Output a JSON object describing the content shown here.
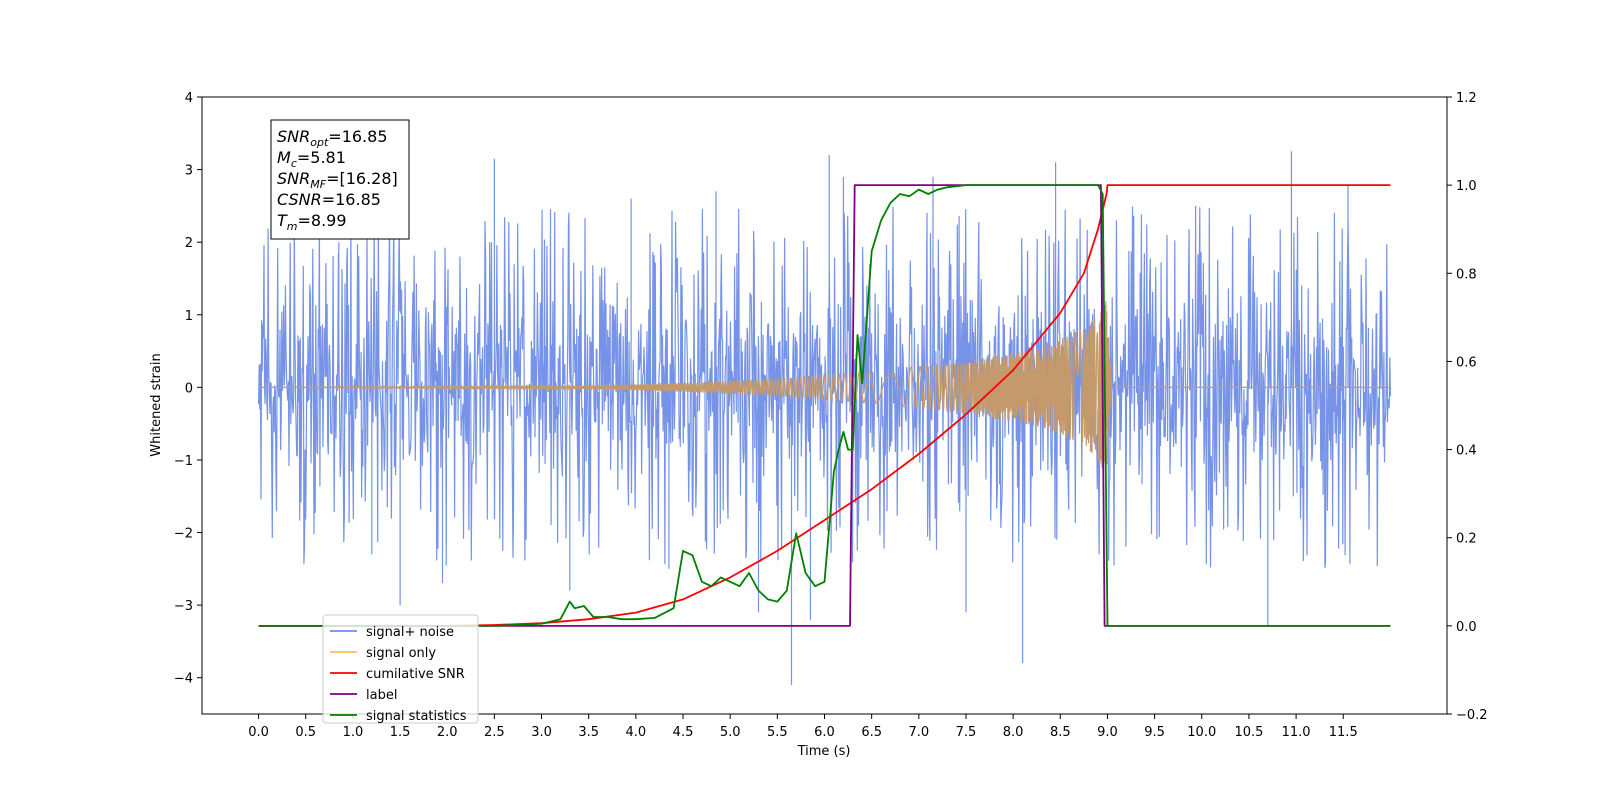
{
  "chart_data": {
    "type": "line",
    "xlabel": "Time (s)",
    "ylabel": "Whitened strain",
    "xlim": [
      -0.6,
      12.6
    ],
    "ylim": [
      -4.5,
      4.0
    ],
    "y2lim": [
      -0.2,
      1.2
    ],
    "x_ticks": [
      0.0,
      0.5,
      1.0,
      1.5,
      2.0,
      2.5,
      3.0,
      3.5,
      4.0,
      4.5,
      5.0,
      5.5,
      6.0,
      6.5,
      7.0,
      7.5,
      8.0,
      8.5,
      9.0,
      9.5,
      10.0,
      10.5,
      11.0,
      11.5
    ],
    "x_tick_labels": [
      "0.0",
      "0.5",
      "1.0",
      "1.5",
      "2.0",
      "2.5",
      "3.0",
      "3.5",
      "4.0",
      "4.5",
      "5.0",
      "5.5",
      "6.0",
      "6.5",
      "7.0",
      "7.5",
      "8.0",
      "8.5",
      "9.0",
      "9.5",
      "10.0",
      "10.5",
      "11.0",
      "11.5"
    ],
    "y_ticks": [
      -4,
      -3,
      -2,
      -1,
      0,
      1,
      2,
      3,
      4
    ],
    "y_tick_labels": [
      "−4",
      "−3",
      "−2",
      "−1",
      "0",
      "1",
      "2",
      "3",
      "4"
    ],
    "y2_ticks": [
      -0.2,
      0.0,
      0.2,
      0.4,
      0.6,
      0.8,
      1.0,
      1.2
    ],
    "y2_tick_labels": [
      "−0.2",
      "0.0",
      "0.2",
      "0.4",
      "0.6",
      "0.8",
      "1.0",
      "1.2"
    ],
    "legend_position": "lower-left",
    "grid": false,
    "annotation": {
      "lines": [
        {
          "base": "SNR",
          "sub": "opt",
          "rest": "=16.85"
        },
        {
          "base": "M",
          "sub": "c",
          "rest": "=5.81"
        },
        {
          "base": "SNR",
          "sub": "MF",
          "rest": "=[16.28]"
        },
        {
          "base": "CSNR",
          "sub": "",
          "rest": "=16.85"
        },
        {
          "base": "T",
          "sub": "m",
          "rest": "=8.99"
        }
      ]
    },
    "series": [
      {
        "name": "signal+ noise",
        "axis": "left",
        "color": "#6f8de6",
        "kind": "noise",
        "x_start": 0.0,
        "x_end": 12.0,
        "band_envelope": 1.9,
        "peaks": [
          [
            0.85,
            2.0
          ],
          [
            1.2,
            -2.3
          ],
          [
            1.95,
            -2.7
          ],
          [
            2.5,
            3.15
          ],
          [
            3.3,
            -2.8
          ],
          [
            3.95,
            2.6
          ],
          [
            4.35,
            -2.5
          ],
          [
            4.85,
            2.7
          ],
          [
            5.3,
            -3.1
          ],
          [
            5.85,
            -3.2
          ],
          [
            6.05,
            3.2
          ],
          [
            6.2,
            2.9
          ],
          [
            7.15,
            2.9
          ],
          [
            7.5,
            -3.1
          ],
          [
            8.1,
            -3.8
          ],
          [
            8.45,
            3.1
          ],
          [
            8.95,
            2.55
          ],
          [
            10.7,
            -3.3
          ],
          [
            10.95,
            3.25
          ],
          [
            11.55,
            2.8
          ],
          [
            5.65,
            -4.1
          ],
          [
            1.5,
            -3.0
          ]
        ]
      },
      {
        "name": "signal only",
        "axis": "left",
        "color": "#c49a6c",
        "kind": "chirp",
        "t_merge": 8.99,
        "envelope": [
          [
            0.0,
            0.0
          ],
          [
            3.5,
            0.02
          ],
          [
            4.5,
            0.06
          ],
          [
            5.5,
            0.12
          ],
          [
            6.5,
            0.22
          ],
          [
            7.5,
            0.36
          ],
          [
            8.3,
            0.55
          ],
          [
            8.8,
            0.85
          ],
          [
            8.99,
            1.2
          ],
          [
            9.05,
            0.0
          ],
          [
            12.0,
            0.0
          ]
        ]
      },
      {
        "name": "cumilative SNR",
        "axis": "right",
        "color": "#ff0000",
        "x": [
          0.0,
          2.0,
          2.5,
          3.0,
          3.5,
          4.0,
          4.5,
          5.0,
          5.5,
          6.0,
          6.5,
          7.0,
          7.5,
          8.0,
          8.5,
          8.75,
          8.9,
          8.99,
          9.0,
          12.0
        ],
        "y": [
          0.0,
          0.0,
          0.002,
          0.006,
          0.015,
          0.03,
          0.06,
          0.11,
          0.17,
          0.24,
          0.31,
          0.39,
          0.48,
          0.58,
          0.71,
          0.8,
          0.9,
          0.98,
          1.0,
          1.0
        ]
      },
      {
        "name": "label",
        "axis": "right",
        "color": "#800080",
        "x": [
          0.0,
          6.27,
          6.32,
          8.93,
          8.97,
          12.0
        ],
        "y": [
          0.0,
          0.0,
          1.0,
          1.0,
          0.0,
          0.0
        ]
      },
      {
        "name": "signal statistics",
        "axis": "right",
        "color": "#008000",
        "x": [
          0.0,
          2.5,
          3.0,
          3.2,
          3.3,
          3.35,
          3.45,
          3.55,
          3.7,
          3.85,
          4.0,
          4.2,
          4.4,
          4.5,
          4.6,
          4.7,
          4.8,
          4.9,
          5.0,
          5.1,
          5.2,
          5.3,
          5.4,
          5.5,
          5.6,
          5.7,
          5.8,
          5.9,
          6.0,
          6.1,
          6.15,
          6.2,
          6.25,
          6.3,
          6.35,
          6.4,
          6.5,
          6.6,
          6.7,
          6.8,
          6.9,
          7.0,
          7.1,
          7.2,
          7.3,
          7.5,
          8.0,
          8.9,
          8.95,
          9.0,
          9.02,
          12.0
        ],
        "y": [
          0.0,
          0.0,
          0.005,
          0.015,
          0.055,
          0.04,
          0.045,
          0.02,
          0.02,
          0.015,
          0.015,
          0.018,
          0.04,
          0.17,
          0.16,
          0.1,
          0.09,
          0.11,
          0.1,
          0.09,
          0.12,
          0.08,
          0.06,
          0.055,
          0.08,
          0.21,
          0.12,
          0.09,
          0.1,
          0.35,
          0.4,
          0.44,
          0.4,
          0.4,
          0.66,
          0.55,
          0.85,
          0.92,
          0.96,
          0.98,
          0.975,
          0.99,
          0.98,
          0.99,
          0.995,
          1.0,
          1.0,
          1.0,
          0.98,
          0.0,
          0.0,
          0.0
        ]
      }
    ],
    "legend_entries": [
      {
        "label": "signal+ noise",
        "color": "#6f8de6"
      },
      {
        "label": "signal only",
        "color": "#ffbf5a"
      },
      {
        "label": "cumilative SNR",
        "color": "#ff0000"
      },
      {
        "label": "label",
        "color": "#800080"
      },
      {
        "label": "signal statistics",
        "color": "#008000"
      }
    ]
  }
}
